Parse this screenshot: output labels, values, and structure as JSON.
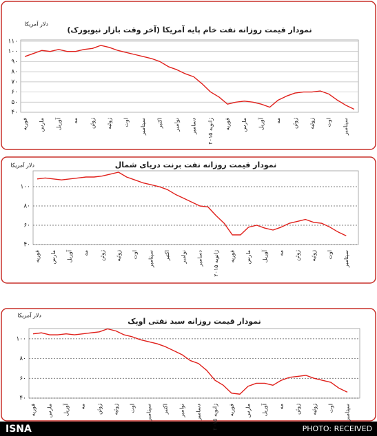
{
  "chart_data": [
    {
      "type": "line",
      "title": "نمودار قیمت روزانه نفت خام پایه آمریکا (آخر وقت بازار نیویورک)",
      "y_label": "دلار آمریکا",
      "categories": [
        "فوریه",
        null,
        "مارس",
        null,
        "آوریل",
        null,
        "مه",
        null,
        "ژوئن",
        null,
        "ژوئیه",
        null,
        "اوت",
        null,
        "سپتامبر",
        null,
        "اکتبر",
        null,
        "نوامبر",
        null,
        "دسامبر",
        null,
        "ژانویه ۲۰۱۵",
        null,
        "فوریه",
        null,
        "مارس",
        null,
        "آوریل",
        null,
        "مه",
        null,
        "ژوئن",
        null,
        "ژوئیه",
        null,
        "اوت",
        null,
        "سپتامبر",
        null
      ],
      "series": [
        {
          "color": "#e0201b",
          "values": [
            95,
            98,
            101,
            100,
            102,
            100,
            100,
            102,
            103,
            106,
            104,
            101,
            99,
            97,
            95,
            93,
            90,
            85,
            82,
            78,
            75,
            68,
            60,
            55,
            48,
            50,
            51,
            50,
            48,
            45,
            52,
            56,
            59,
            60,
            60,
            61,
            58,
            52,
            47,
            43
          ]
        }
      ],
      "ylim": [
        40,
        110
      ],
      "yticks": [
        {
          "value": 40,
          "label": "۴۰"
        },
        {
          "value": 50,
          "label": "۵۰"
        },
        {
          "value": 60,
          "label": "۶۰"
        },
        {
          "value": 70,
          "label": "۷۰"
        },
        {
          "value": 80,
          "label": "۸۰"
        },
        {
          "value": 90,
          "label": "۹۰"
        },
        {
          "value": 100,
          "label": "۱۰۰"
        },
        {
          "value": 110,
          "label": "۱۱۰"
        }
      ],
      "grid": true
    },
    {
      "type": "line",
      "title": "نمودار قیمت روزانه نفت برنت دریای شمال",
      "y_label": "دلار آمریکا",
      "categories": [
        "فوریه",
        null,
        "مارس",
        null,
        "آوریل",
        null,
        "مه",
        null,
        "ژوئن",
        null,
        "ژوئیه",
        null,
        "اوت",
        null,
        "سپتامبر",
        null,
        "اکتبر",
        null,
        "نوامبر",
        null,
        "دسامبر",
        null,
        "ژانویه ۲۰۱۵",
        null,
        "فوریه",
        null,
        "مارس",
        null,
        "آوریل",
        null,
        "مه",
        null,
        "ژوئن",
        null,
        "ژوئیه",
        null,
        "اوت",
        null,
        "سپتامبر",
        null
      ],
      "series": [
        {
          "color": "#e0201b",
          "values": [
            108,
            109,
            108,
            107,
            108,
            109,
            110,
            110,
            111,
            113,
            115,
            110,
            107,
            104,
            102,
            100,
            97,
            92,
            88,
            84,
            80,
            79,
            70,
            62,
            50,
            50,
            58,
            60,
            57,
            55,
            58,
            62,
            64,
            66,
            63,
            62,
            58,
            53,
            49,
            null
          ]
        }
      ],
      "ylim": [
        40,
        120
      ],
      "yticks": [
        {
          "value": 40,
          "label": "۴۰"
        },
        {
          "value": 60,
          "label": "۶۰"
        },
        {
          "value": 80,
          "label": "۸۰"
        },
        {
          "value": 100,
          "label": "۱۰۰"
        }
      ],
      "grid": true
    },
    {
      "type": "line",
      "title": "نمودار قیمت روزانه سبد نفتی اوپک",
      "y_label": "دلار آمریکا",
      "categories": [
        "فوریه",
        null,
        "مارس",
        null,
        "آوریل",
        null,
        "مه",
        null,
        "ژوئن",
        null,
        "ژوئیه",
        null,
        "اوت",
        null,
        "سپتامبر",
        null,
        "اکتبر",
        null,
        "نوامبر",
        null,
        "دسامبر",
        null,
        "ژانویه ۲۰۱۵",
        null,
        "فوریه",
        null,
        "مارس",
        null,
        "آوریل",
        null,
        "مه",
        null,
        "ژوئن",
        null,
        "ژوئیه",
        null,
        "اوت",
        null,
        "سپتامبر",
        null
      ],
      "series": [
        {
          "color": "#e0201b",
          "values": [
            105,
            106,
            104,
            104,
            105,
            104,
            105,
            106,
            107,
            110,
            108,
            104,
            102,
            99,
            97,
            95,
            92,
            88,
            84,
            78,
            75,
            68,
            58,
            53,
            45,
            44,
            52,
            55,
            55,
            53,
            58,
            61,
            62,
            63,
            60,
            58,
            56,
            50,
            46,
            null
          ]
        }
      ],
      "ylim": [
        40,
        110
      ],
      "yticks": [
        {
          "value": 40,
          "label": "۴۰"
        },
        {
          "value": 60,
          "label": "۶۰"
        },
        {
          "value": 80,
          "label": "۸۰"
        },
        {
          "value": 100,
          "label": "۱۰۰"
        }
      ],
      "grid": true
    }
  ],
  "footer": {
    "brand": "ISNA",
    "credit": "PHOTO: RECEIVED"
  }
}
